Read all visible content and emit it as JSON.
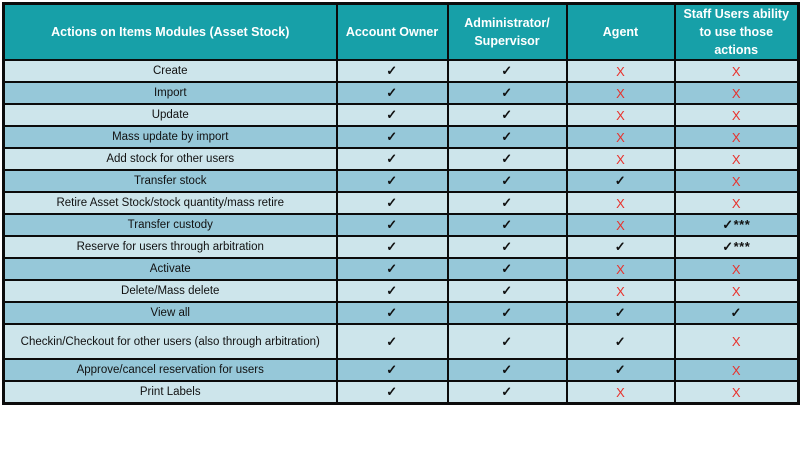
{
  "chart_data": {
    "type": "table",
    "title": "Actions on Items Modules (Asset Stock) permissions matrix",
    "columns": [
      "Actions on Items Modules (Asset Stock)",
      "Account Owner",
      "Administrator/\nSupervisor",
      "Agent",
      "Staff Users ability to use those actions"
    ],
    "symbols": {
      "check": "✓",
      "cross": "X",
      "check_asterisks": "✓***"
    },
    "rows": [
      {
        "action": "Create",
        "values": [
          "check",
          "check",
          "cross",
          "cross"
        ]
      },
      {
        "action": "Import",
        "values": [
          "check",
          "check",
          "cross",
          "cross"
        ]
      },
      {
        "action": "Update",
        "values": [
          "check",
          "check",
          "cross",
          "cross"
        ]
      },
      {
        "action": "Mass update by import",
        "values": [
          "check",
          "check",
          "cross",
          "cross"
        ]
      },
      {
        "action": "Add stock for other users",
        "values": [
          "check",
          "check",
          "cross",
          "cross"
        ]
      },
      {
        "action": "Transfer stock",
        "values": [
          "check",
          "check",
          "check",
          "cross"
        ]
      },
      {
        "action": "Retire Asset Stock/stock quantity/mass retire",
        "values": [
          "check",
          "check",
          "cross",
          "cross"
        ]
      },
      {
        "action": "Transfer custody",
        "values": [
          "check",
          "check",
          "cross",
          "check_asterisks"
        ]
      },
      {
        "action": "Reserve for users through arbitration",
        "values": [
          "check",
          "check",
          "check",
          "check_asterisks"
        ]
      },
      {
        "action": "Activate",
        "values": [
          "check",
          "check",
          "cross",
          "cross"
        ]
      },
      {
        "action": "Delete/Mass delete",
        "values": [
          "check",
          "check",
          "cross",
          "cross"
        ]
      },
      {
        "action": "View all",
        "values": [
          "check",
          "check",
          "check",
          "check"
        ]
      },
      {
        "action": "Checkin/Checkout for other users (also through arbitration)",
        "values": [
          "check",
          "check",
          "check",
          "cross"
        ]
      },
      {
        "action": "Approve/cancel reservation for users",
        "values": [
          "check",
          "check",
          "check",
          "cross"
        ]
      },
      {
        "action": "Print Labels",
        "values": [
          "check",
          "check",
          "cross",
          "cross"
        ]
      }
    ],
    "layout": {
      "legend": "none",
      "grid": "full black cell borders",
      "row_striping": "odd rows light, even rows medium"
    }
  },
  "colors": {
    "header_bg": "#17a0a8",
    "header_text": "#ffffff",
    "row_light": "#cde5eb",
    "row_medium": "#96c8d9",
    "check_mark": "#111111",
    "cross_mark": "#e8322d",
    "border": "#0b0b0b"
  }
}
